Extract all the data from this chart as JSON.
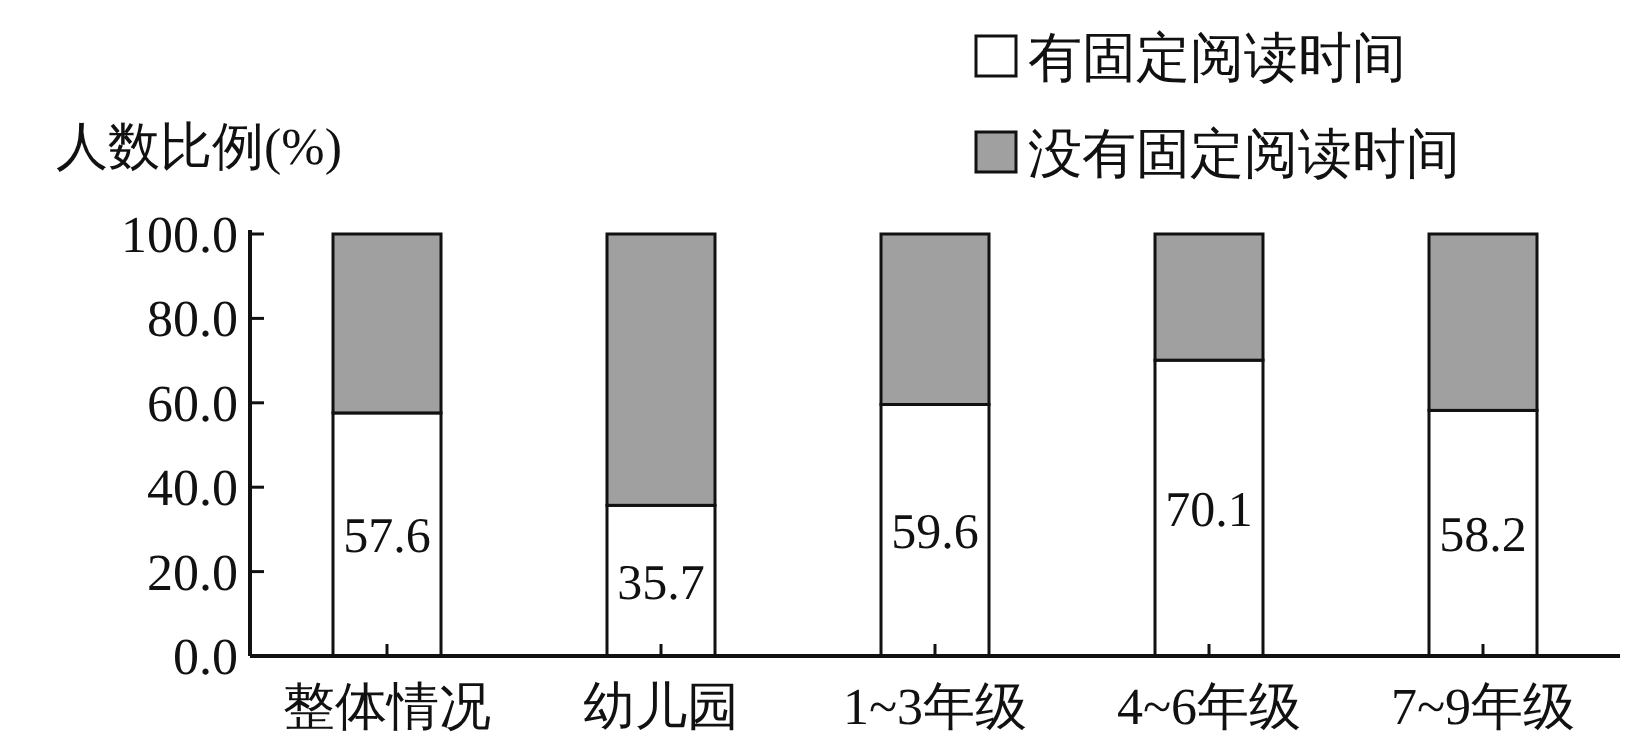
{
  "chart_data": {
    "type": "bar",
    "stacked": true,
    "ylabel": "人数比例(%)",
    "categories": [
      "整体情况",
      "幼儿园",
      "1~3年级",
      "4~6年级",
      "7~9年级"
    ],
    "series": [
      {
        "name": "有固定阅读时间",
        "color": "#ffffff",
        "values": [
          57.6,
          35.7,
          59.6,
          70.1,
          58.2
        ],
        "value_labels": [
          "57.6",
          "35.7",
          "59.6",
          "70.1",
          "58.2"
        ]
      },
      {
        "name": "没有固定阅读时间",
        "color": "#a0a0a0",
        "values": [
          42.4,
          64.3,
          40.4,
          29.9,
          41.8
        ]
      }
    ],
    "ylim": [
      0,
      100
    ],
    "yticks": [
      {
        "value": 0,
        "label": "0.0"
      },
      {
        "value": 20,
        "label": "20.0"
      },
      {
        "value": 40,
        "label": "40.0"
      },
      {
        "value": 60,
        "label": "60.0"
      },
      {
        "value": 80,
        "label": "80.0"
      },
      {
        "value": 100,
        "label": "100.0"
      }
    ],
    "legend": "top right"
  }
}
